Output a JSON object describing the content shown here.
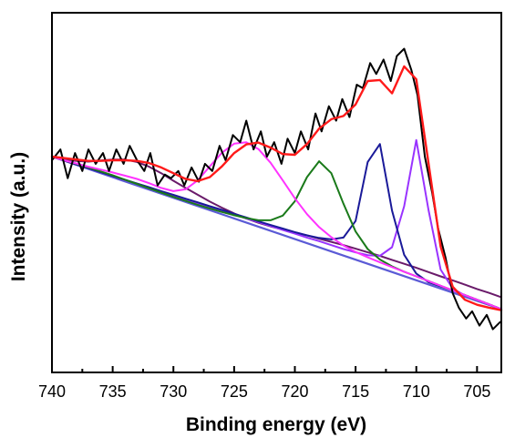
{
  "chart_data": {
    "type": "line",
    "xlabel": "Binding energy (eV)",
    "ylabel": "Intensity (a.u.)",
    "xlim": [
      740,
      703
    ],
    "x_reversed": true,
    "ylim": [
      0,
      100
    ],
    "y_ticks_shown": false,
    "x_ticks": [
      740,
      735,
      730,
      725,
      720,
      715,
      710,
      705
    ],
    "x_tick_labels": [
      "740",
      "735",
      "730",
      "725",
      "720",
      "715",
      "710",
      "705"
    ],
    "grid": false,
    "legend": "none",
    "series": [
      {
        "color": "#000000",
        "style": "raw-noisy",
        "x": [
          740,
          739.3,
          738.7,
          738.1,
          737.5,
          737,
          736.4,
          735.8,
          735.3,
          734.7,
          734.1,
          733.6,
          733,
          732.4,
          731.9,
          731.3,
          730.7,
          730.2,
          729.6,
          729.1,
          728.5,
          727.9,
          727.4,
          726.8,
          726.2,
          725.7,
          725.1,
          724.5,
          724,
          723.4,
          722.8,
          722.3,
          721.7,
          721.1,
          720.6,
          720,
          719.5,
          718.9,
          718.3,
          717.8,
          717.2,
          716.6,
          716.1,
          715.5,
          714.9,
          714.4,
          713.8,
          713.3,
          712.7,
          712.1,
          711.6,
          711,
          710.4,
          709.9,
          709.3,
          708.7,
          708.2,
          707.6,
          707,
          706.5,
          705.9,
          705.4,
          704.8,
          704.2,
          703.7,
          703.1
        ],
        "y": [
          59,
          62,
          54,
          61,
          56,
          62,
          58,
          61,
          56,
          62,
          58,
          63,
          59,
          56,
          61,
          52,
          55,
          54,
          56,
          52,
          57,
          53,
          58,
          56,
          63,
          59,
          66,
          64,
          70,
          62,
          67,
          60,
          64,
          58,
          65,
          61,
          67,
          62,
          72,
          67,
          74,
          70,
          76,
          71,
          80,
          79,
          86,
          83,
          87,
          81,
          88,
          90,
          84,
          77,
          60,
          50,
          40,
          32,
          22,
          18,
          15,
          17,
          13,
          16,
          12,
          14
        ]
      },
      {
        "color": "#ff1a1a",
        "style": "envelope-fit",
        "x": [
          740,
          739,
          738,
          737,
          736,
          735,
          734,
          733,
          732,
          731,
          730,
          729,
          728,
          727,
          726,
          725,
          724,
          723,
          722,
          721,
          720,
          719,
          718,
          717,
          716,
          715,
          714,
          713,
          712,
          711,
          710,
          709,
          708,
          707,
          706,
          705,
          704,
          703
        ],
        "y": [
          60,
          59.6,
          59.2,
          58.8,
          58.8,
          59,
          59,
          58.8,
          58.2,
          57,
          55.4,
          53.8,
          53.2,
          54.3,
          57.3,
          61,
          63.4,
          63.9,
          62.5,
          60.7,
          60.5,
          63.5,
          67.8,
          70.4,
          71.3,
          74.5,
          81,
          81.3,
          77.6,
          85.1,
          81.5,
          58.2,
          35,
          23.8,
          20.2,
          18.8,
          18,
          17.3
        ]
      },
      {
        "color": "#ff33ff",
        "style": "fit-peak",
        "x": [
          740,
          739,
          738,
          737,
          736,
          735,
          734,
          733,
          732,
          731,
          730,
          729,
          728,
          727,
          726,
          725,
          724,
          723,
          722,
          721,
          720,
          719,
          718,
          717,
          716,
          715,
          714,
          713,
          712,
          711,
          710,
          709,
          708,
          707,
          706,
          705,
          704,
          703
        ],
        "y": [
          60,
          59,
          58.1,
          57.2,
          56.4,
          55.6,
          54.7,
          53.8,
          52.6,
          51.3,
          50.4,
          50.9,
          53.4,
          57.3,
          61.1,
          63.6,
          64,
          62.1,
          58.3,
          53.4,
          48.4,
          44,
          40.4,
          37.6,
          35.3,
          33.5,
          32,
          30.6,
          29.3,
          28,
          26.7,
          25.4,
          24.1,
          22.8,
          21.5,
          20.2,
          18.9,
          17.6
        ]
      },
      {
        "color": "#1a7a1a",
        "style": "fit-peak",
        "x": [
          740,
          739,
          738,
          737,
          736,
          735,
          734,
          733,
          732,
          731,
          730,
          729,
          728,
          727,
          726,
          725,
          724,
          723,
          722,
          721,
          720,
          719,
          718,
          717,
          716,
          715,
          714,
          713,
          712,
          711,
          710,
          709,
          708,
          707,
          706,
          705,
          704,
          703
        ],
        "y": [
          60,
          59,
          58,
          57,
          55.9,
          54.8,
          53.6,
          52.4,
          51.2,
          50,
          48.8,
          47.7,
          46.6,
          45.6,
          44.6,
          43.7,
          42.9,
          42.3,
          42.3,
          43.6,
          47.6,
          54.3,
          58.7,
          55.4,
          46.9,
          39.2,
          34.3,
          31.4,
          29.5,
          28,
          26.7,
          25.4,
          24.1,
          22.8,
          21.5,
          20.2,
          18.9,
          17.6
        ]
      },
      {
        "color": "#1a1a99",
        "style": "fit-peak",
        "x": [
          740,
          739,
          738,
          737,
          736,
          735,
          734,
          733,
          732,
          731,
          730,
          729,
          728,
          727,
          726,
          725,
          724,
          723,
          722,
          721,
          720,
          719,
          718,
          717,
          716,
          715,
          714,
          713,
          712,
          711,
          710,
          709,
          708,
          707,
          706,
          705,
          704,
          703
        ],
        "y": [
          60,
          58.9,
          57.8,
          56.8,
          55.7,
          54.6,
          53.6,
          52.5,
          51.5,
          50.4,
          49.4,
          48.3,
          47.3,
          46.2,
          45.2,
          44.1,
          43.1,
          42,
          41,
          40,
          39,
          38.1,
          37.4,
          37,
          37.5,
          42.1,
          58.5,
          63.5,
          45,
          32.7,
          27.5,
          25.1,
          23.9,
          22.8,
          21.5,
          20.2,
          18.9,
          17.6
        ]
      },
      {
        "color": "#9933ff",
        "style": "fit-peak",
        "x": [
          740,
          739,
          738,
          737,
          736,
          735,
          734,
          733,
          732,
          731,
          730,
          729,
          728,
          727,
          726,
          725,
          724,
          723,
          722,
          721,
          720,
          719,
          718,
          717,
          716,
          715,
          714,
          713,
          712,
          711,
          710,
          709,
          708,
          707,
          706,
          705,
          704,
          703
        ],
        "y": [
          60,
          58.9,
          57.8,
          56.8,
          55.7,
          54.6,
          53.5,
          52.5,
          51.4,
          50.3,
          49.3,
          48.2,
          47.1,
          46.1,
          45,
          43.9,
          42.8,
          41.8,
          40.7,
          39.6,
          38.6,
          37.5,
          36.5,
          35.4,
          34.3,
          33.4,
          32.6,
          32.4,
          34.8,
          46.2,
          64.6,
          45.2,
          28.6,
          23.3,
          21.4,
          20.2,
          18.9,
          17.6
        ]
      },
      {
        "color": "#6a1b6a",
        "style": "fit-peak",
        "x": [
          740,
          739,
          738,
          737,
          736,
          735,
          734,
          733,
          732,
          731,
          730,
          729,
          728,
          727,
          726,
          725,
          724,
          723,
          722,
          721,
          720,
          719,
          718,
          717,
          716,
          715,
          714,
          713,
          712,
          711,
          710,
          709,
          708,
          707,
          706,
          705,
          704,
          703
        ],
        "y": [
          60,
          59.3,
          58.8,
          58.6,
          58.9,
          59.2,
          59.2,
          58.5,
          57.2,
          55.4,
          53.3,
          51.3,
          49.4,
          47.5,
          45.8,
          44.2,
          42.8,
          41.6,
          40.6,
          39.7,
          38.9,
          38.1,
          37.2,
          36.3,
          35.4,
          34.4,
          33.4,
          32.4,
          31.3,
          30.2,
          29.1,
          27.9,
          26.7,
          25.6,
          24.4,
          23.2,
          22.1,
          20.9
        ]
      },
      {
        "color": "#5b5bd6",
        "style": "baseline",
        "x": [
          740,
          703
        ],
        "y": [
          60,
          17.6
        ]
      }
    ]
  }
}
